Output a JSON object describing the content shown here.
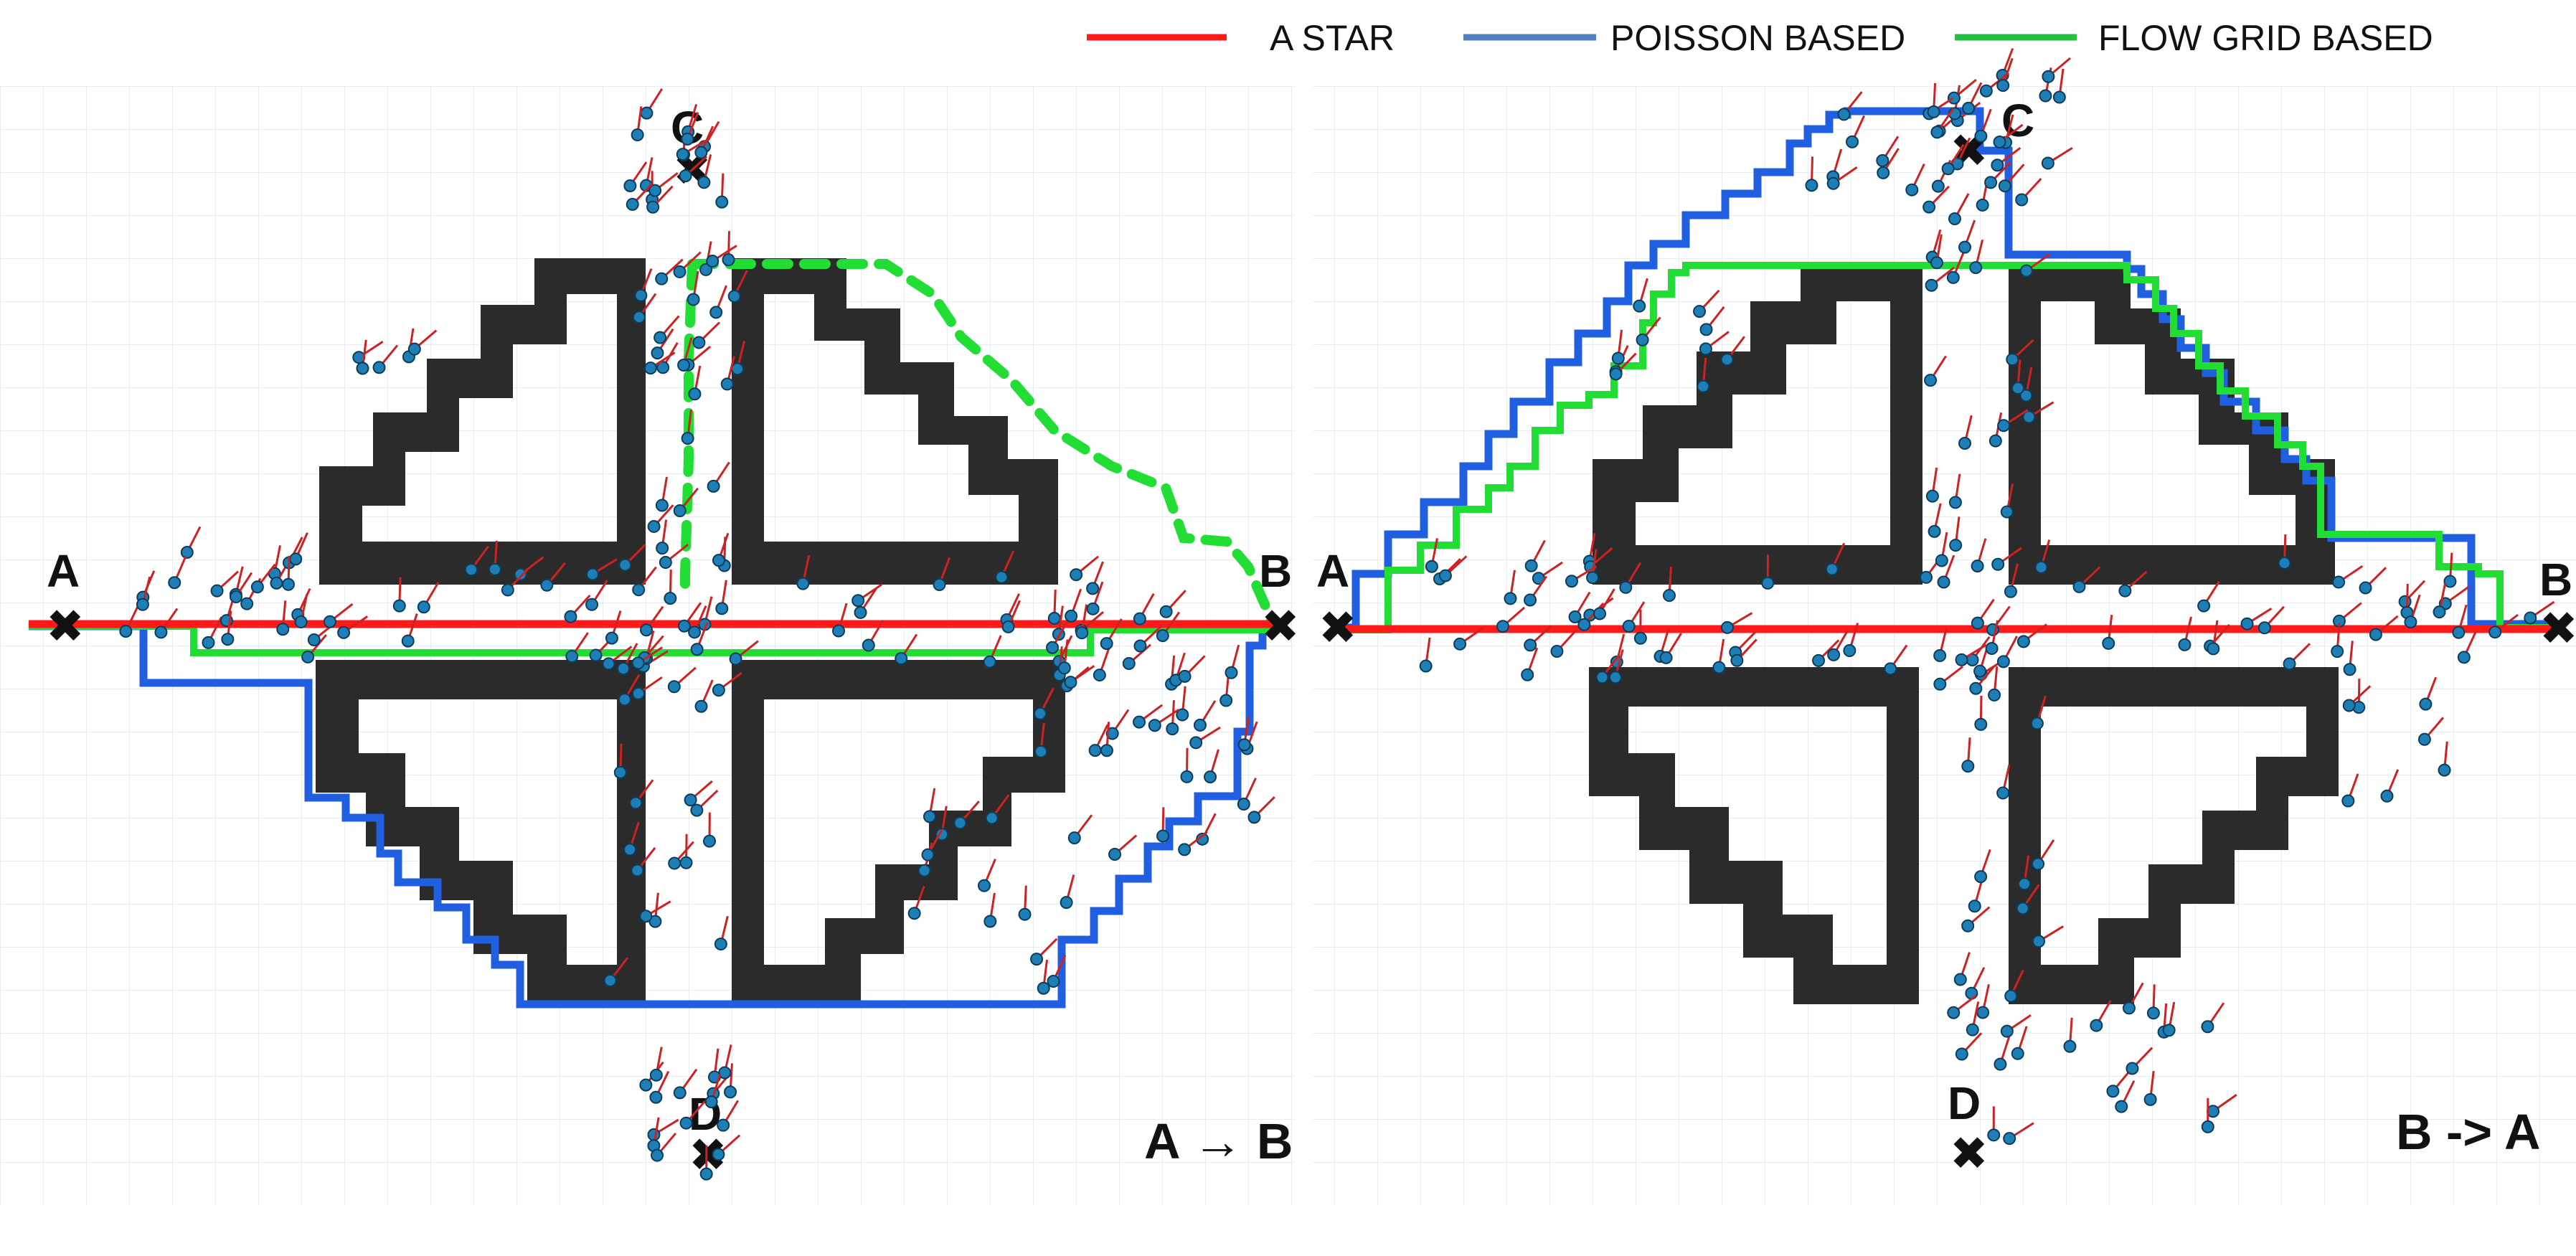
{
  "legend": [
    {
      "label": "A STAR",
      "color": "#ff1a1a"
    },
    {
      "label": "POISSON  BASED",
      "color": "#4f81bd"
    },
    {
      "label": "FLOW GRID  BASED",
      "color": "#22c141"
    }
  ],
  "colors": {
    "a_star": "#ff1a1a",
    "poisson": "#1f5fe0",
    "flow_grid": "#22dd33",
    "wall": "#2b2b2b",
    "grid": "#e9edf1",
    "agent": "#1d7fb5",
    "agent_arrow": "#cc2222"
  },
  "panels": [
    {
      "name": "left",
      "caption": "A → B",
      "markers": {
        "A": "A",
        "B": "B",
        "C": "C",
        "D": "D"
      }
    },
    {
      "name": "right",
      "caption": "B -> A",
      "markers": {
        "A": "A",
        "B": "B",
        "C": "C",
        "D": "D"
      }
    }
  ]
}
